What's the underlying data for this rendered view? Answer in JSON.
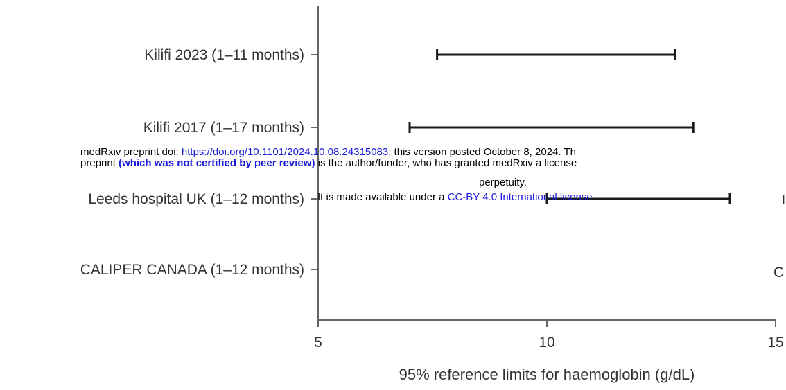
{
  "chart_data": {
    "type": "interval",
    "categories": [
      "Kilifi 2023 (1–11 months)",
      "Kilifi 2017 (1–17 months)",
      "Leeds hospital UK (1–12 months)",
      "CALIPER CANADA (1–12 months)"
    ],
    "intervals": [
      {
        "low": 7.6,
        "high": 12.8
      },
      {
        "low": 7.0,
        "high": 13.2
      },
      {
        "low": 10.0,
        "high": 14.0
      },
      {
        "low": null,
        "high": null
      }
    ],
    "xlabel": "95% reference limits for haemoglobin (g/dL)",
    "xticks": [
      "5",
      "10",
      "15"
    ],
    "xlim": [
      5,
      15
    ],
    "colors": {
      "line": "#1a1a1a",
      "axis": "#666666"
    }
  },
  "overlay": {
    "line1_prefix": "medRxiv preprint doi: ",
    "line1_link": "https://doi.org/10.1101/2024.10.08.24315083",
    "line1_suffix": "; this version posted October 8, 2024. Th",
    "line2_prefix": "preprint  ",
    "line2_bold": "(which was not certified by peer review)",
    "line2_suffix": " is the author/funder, who has granted medRxiv a license",
    "line3": "perpetuity.",
    "line4_prefix": "It is made available under a ",
    "line4_link": "CC-BY 4.0 International license",
    "line4_suffix": " .",
    "edge_c": "C",
    "edge_bar": "I"
  }
}
